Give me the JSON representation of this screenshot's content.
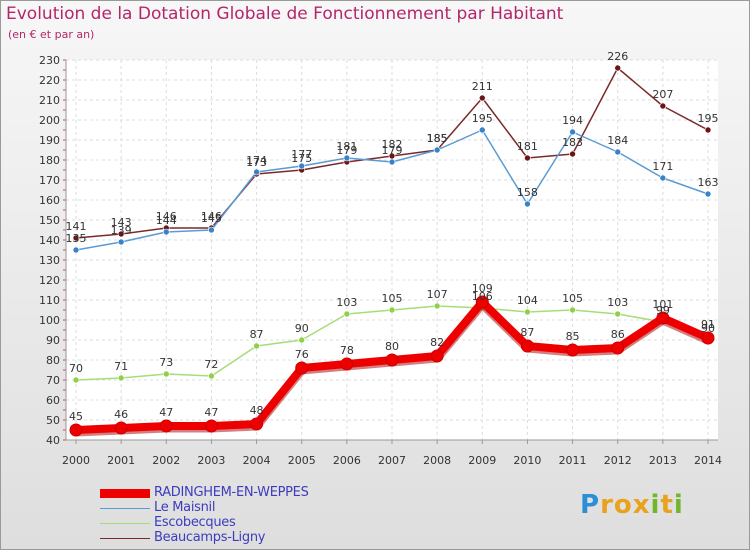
{
  "title": "Evolution de la Dotation Globale de Fonctionnement par Habitant",
  "subtitle": "(en € et par an)",
  "logo": {
    "text": "Proxiti",
    "letters": [
      "P",
      "r",
      "o",
      "x",
      "i",
      "t",
      "i"
    ],
    "colors": [
      "#2b8fd6",
      "#e8a21c",
      "#e8a21c",
      "#e8a21c",
      "#72b62c",
      "#e8a21c",
      "#72b62c"
    ]
  },
  "chart_data": {
    "type": "line",
    "title": "Evolution de la Dotation Globale de Fonctionnement par Habitant",
    "subtitle": "(en € et par an)",
    "xlabel": "",
    "ylabel": "",
    "ylim": [
      40,
      230
    ],
    "yticks": [
      40,
      50,
      60,
      70,
      80,
      90,
      100,
      110,
      120,
      130,
      140,
      150,
      160,
      170,
      180,
      190,
      200,
      210,
      220,
      230
    ],
    "grid": true,
    "legend_position": "bottom-left",
    "x": [
      "2000",
      "2001",
      "2002",
      "2003",
      "2004",
      "2005",
      "2006",
      "2007",
      "2008",
      "2009",
      "2010",
      "2011",
      "2012",
      "2013",
      "2014"
    ],
    "series": [
      {
        "name": "Beaucamps-Ligny",
        "color": "#7a2a2a",
        "dot": "#6b1515",
        "values": [
          141,
          143,
          146,
          146,
          173,
          175,
          179,
          182,
          185,
          211,
          181,
          183,
          226,
          207,
          195
        ]
      },
      {
        "name": "Le Maisnil",
        "color": "#5a9bd5",
        "dot": "#3a82c8",
        "values": [
          135,
          139,
          144,
          145,
          174,
          177,
          181,
          179,
          185,
          195,
          158,
          194,
          184,
          171,
          163
        ]
      },
      {
        "name": "Escobecques",
        "color": "#a6dc7a",
        "dot": "#8ed048",
        "values": [
          70,
          71,
          73,
          72,
          87,
          90,
          103,
          105,
          107,
          106,
          104,
          105,
          103,
          99,
          90
        ]
      },
      {
        "name": "RADINGHEM-EN-WEPPES",
        "color": "#ee0000",
        "dot": "#ee0000",
        "values": [
          45,
          46,
          47,
          47,
          48,
          76,
          78,
          80,
          82,
          109,
          87,
          85,
          86,
          101,
          91
        ]
      }
    ],
    "legend": [
      "RADINGHEM-EN-WEPPES",
      "Le Maisnil",
      "Escobecques",
      "Beaucamps-Ligny"
    ]
  }
}
